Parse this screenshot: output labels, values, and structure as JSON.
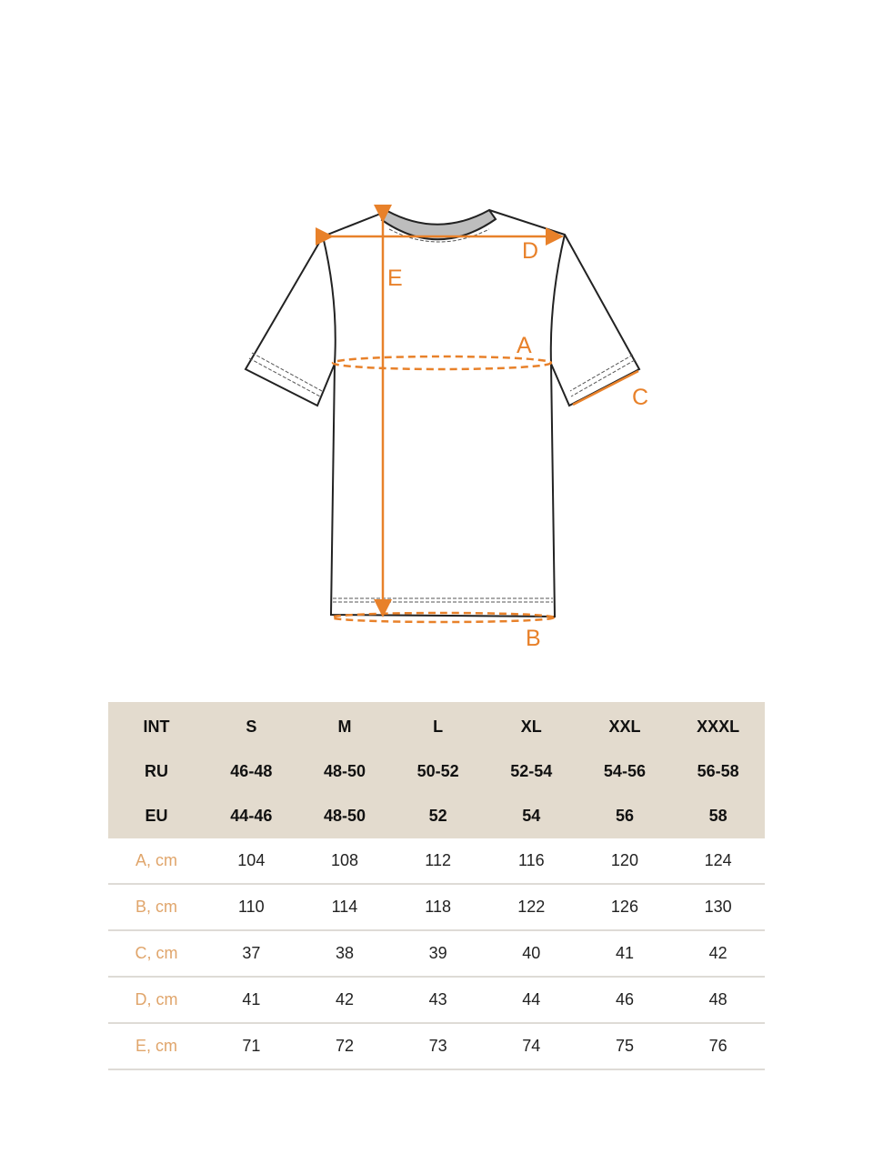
{
  "diagram": {
    "labels": {
      "a": "A",
      "b": "B",
      "c": "C",
      "d": "D",
      "e": "E"
    },
    "accent_color": "#e8812a"
  },
  "size_table": {
    "header_rows": [
      {
        "label": "INT",
        "values": [
          "S",
          "M",
          "L",
          "XL",
          "XXL",
          "XXXL"
        ]
      },
      {
        "label": "RU",
        "values": [
          "46-48",
          "48-50",
          "50-52",
          "52-54",
          "54-56",
          "56-58"
        ]
      },
      {
        "label": "EU",
        "values": [
          "44-46",
          "48-50",
          "52",
          "54",
          "56",
          "58"
        ]
      }
    ],
    "rows": [
      {
        "label": "A, cm",
        "values": [
          "104",
          "108",
          "112",
          "116",
          "120",
          "124"
        ]
      },
      {
        "label": "B, cm",
        "values": [
          "110",
          "114",
          "118",
          "122",
          "126",
          "130"
        ]
      },
      {
        "label": "C, cm",
        "values": [
          "37",
          "38",
          "39",
          "40",
          "41",
          "42"
        ]
      },
      {
        "label": "D, cm",
        "values": [
          "41",
          "42",
          "43",
          "44",
          "46",
          "48"
        ]
      },
      {
        "label": "E, cm",
        "values": [
          "71",
          "72",
          "73",
          "74",
          "75",
          "76"
        ]
      }
    ],
    "header_bg": "#e3dbce",
    "label_color": "#e0a56b"
  }
}
